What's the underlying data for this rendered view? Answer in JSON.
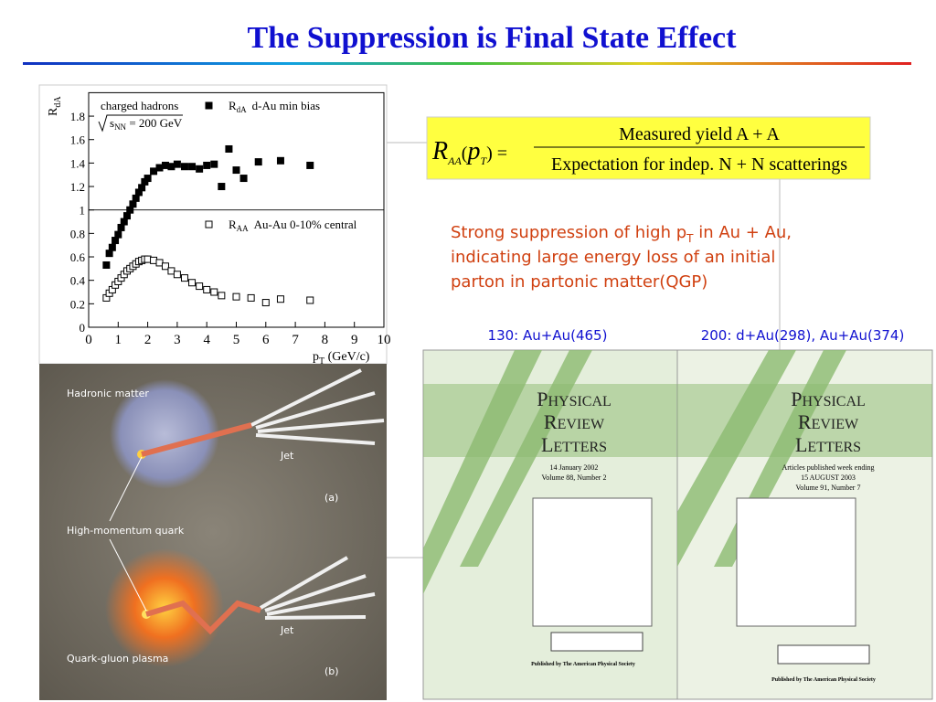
{
  "title": "The Suppression is Final State Effect",
  "chart_data": {
    "type": "scatter",
    "notes": [
      "charged hadrons",
      "s",
      "NN",
      " = 200 GeV"
    ],
    "ylabel": {
      "main": "R",
      "sub": "dA"
    },
    "xlabel": {
      "main": "p",
      "sub": "T",
      "unit": " (GeV/c)"
    },
    "xlim": [
      0,
      10
    ],
    "xticks": [
      0,
      1,
      2,
      3,
      4,
      5,
      6,
      7,
      8,
      9,
      10
    ],
    "ylim": [
      0,
      2
    ],
    "yticks": [
      0,
      0.2,
      0.4,
      0.6,
      0.8,
      1,
      1.2,
      1.4,
      1.6,
      1.8
    ],
    "reference_line": 1,
    "series": [
      {
        "name": "d-Au min bias",
        "symbol": "R",
        "sub": "dA",
        "color": "#000000",
        "marker": "filled",
        "x": [
          0.6,
          0.7,
          0.8,
          0.9,
          1.0,
          1.1,
          1.2,
          1.3,
          1.4,
          1.5,
          1.6,
          1.7,
          1.8,
          1.9,
          2.0,
          2.2,
          2.4,
          2.6,
          2.8,
          3.0,
          3.25,
          3.5,
          3.75,
          4.0,
          4.25,
          4.5,
          4.75,
          5.0,
          5.25,
          5.75,
          6.5,
          7.5
        ],
        "values": [
          0.53,
          0.63,
          0.68,
          0.74,
          0.79,
          0.85,
          0.9,
          0.95,
          1.0,
          1.05,
          1.1,
          1.15,
          1.19,
          1.24,
          1.27,
          1.33,
          1.36,
          1.38,
          1.37,
          1.39,
          1.37,
          1.37,
          1.35,
          1.38,
          1.39,
          1.2,
          1.52,
          1.34,
          1.27,
          1.41,
          1.42,
          1.38
        ]
      },
      {
        "name": "Au-Au 0-10% central",
        "symbol": "R",
        "sub": "AA",
        "color": "#000000",
        "marker": "open",
        "x": [
          0.6,
          0.7,
          0.8,
          0.9,
          1.0,
          1.1,
          1.2,
          1.3,
          1.4,
          1.5,
          1.6,
          1.7,
          1.8,
          1.9,
          2.0,
          2.2,
          2.4,
          2.6,
          2.8,
          3.0,
          3.25,
          3.5,
          3.75,
          4.0,
          4.25,
          4.5,
          5.0,
          5.5,
          6.0,
          6.5,
          7.5
        ],
        "values": [
          0.25,
          0.29,
          0.32,
          0.36,
          0.39,
          0.42,
          0.45,
          0.48,
          0.5,
          0.52,
          0.54,
          0.56,
          0.57,
          0.58,
          0.58,
          0.57,
          0.55,
          0.52,
          0.48,
          0.45,
          0.42,
          0.38,
          0.35,
          0.32,
          0.3,
          0.27,
          0.26,
          0.25,
          0.21,
          0.24,
          0.23
        ]
      }
    ]
  },
  "formula": {
    "lhs": "R",
    "lhs_sub": "AA",
    "open": "(",
    "arg": "p",
    "arg_sub": "T",
    "close": ") =",
    "numerator": "Measured yield A + A",
    "denominator": "Expectation for indep. N + N scatterings"
  },
  "statement": {
    "before": "Strong suppression of high p",
    "sub": "T",
    "after": " in Au + Au,",
    "line2": "indicating large energy loss of an initial",
    "line3": "parton in partonic matter(QGP)"
  },
  "illustration": {
    "top": "Hadronic matter",
    "jet_a": "Jet",
    "panel_a": "(a)",
    "quark": "High-momentum quark",
    "bottom": "Quark-gluon plasma",
    "jet_b": "Jet",
    "panel_b": "(b)"
  },
  "covers": [
    {
      "caption": "130: Au+Au(465)",
      "journal": [
        "P",
        "HYSICAL",
        "R",
        "EVIEW",
        "L",
        "ETTERS"
      ],
      "lines": [
        "14 January 2002",
        "Volume 88, Number 2"
      ],
      "footer": "Published by The American Physical Society"
    },
    {
      "caption": "200: d+Au(298), Au+Au(374)",
      "journal": [
        "P",
        "HYSICAL",
        "R",
        "EVIEW",
        "L",
        "ETTERS"
      ],
      "lines": [
        "Articles published week ending",
        "15 AUGUST 2003",
        "Volume 91, Number 7"
      ],
      "footer": "Published by The American Physical Society"
    }
  ]
}
